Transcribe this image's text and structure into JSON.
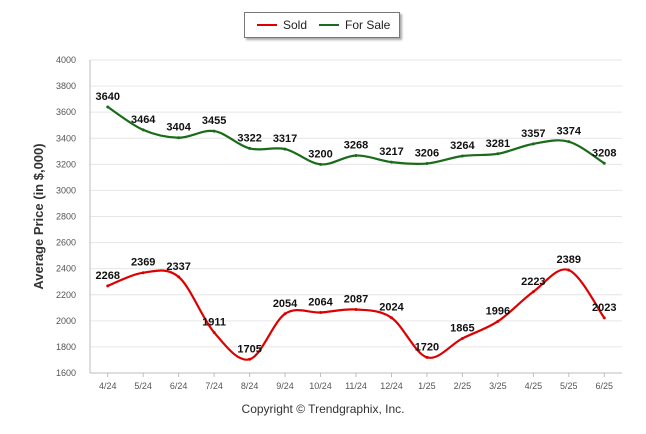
{
  "chart_data": {
    "type": "line",
    "categories": [
      "4/24",
      "5/24",
      "6/24",
      "7/24",
      "8/24",
      "9/24",
      "10/24",
      "11/24",
      "12/24",
      "1/25",
      "2/25",
      "3/25",
      "4/25",
      "5/25",
      "6/25"
    ],
    "series": [
      {
        "name": "Sold",
        "color": "#dd0000",
        "values": [
          2268,
          2369,
          2337,
          1911,
          1705,
          2054,
          2064,
          2087,
          2024,
          1720,
          1865,
          1996,
          2223,
          2389,
          2023
        ]
      },
      {
        "name": "For Sale",
        "color": "#1a6b1a",
        "values": [
          3640,
          3464,
          3404,
          3455,
          3322,
          3317,
          3200,
          3268,
          3217,
          3206,
          3264,
          3281,
          3357,
          3374,
          3208
        ]
      }
    ],
    "ylabel": "Average Price (in $,000)",
    "xlabel": "",
    "ylim": [
      1600,
      4000
    ],
    "yticks": [
      1600,
      1800,
      2000,
      2200,
      2400,
      2600,
      2800,
      3000,
      3200,
      3400,
      3600,
      3800,
      4000
    ],
    "grid": true,
    "legend": "top-center"
  },
  "footer": {
    "copyright": "Copyright © Trendgraphix, Inc."
  }
}
